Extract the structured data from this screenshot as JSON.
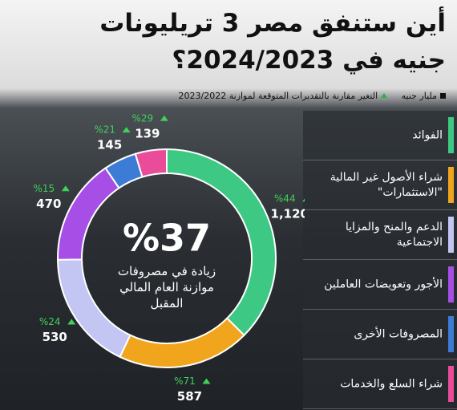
{
  "chart_data": {
    "type": "donut",
    "title": "أين ستنفق مصر 3 تريليونات جنيه في 2024/2023؟",
    "unit_label": "مليار جنيه",
    "change_label": "التغير مقارنة بالتقديرات المتوقعة لموازنة 2023/2022",
    "center_label": "%37",
    "center_text": "زيادة في مصروفات موازنة العام المالي المقبل",
    "categories": [
      "الفوائد",
      "شراء الأصول غير المالية \"الاستثمارات\"",
      "الدعم والمنح والمزايا الاجتماعية",
      "الأجور وتعويضات العاملين",
      "المصروفات الأخرى",
      "شراء السلع والخدمات"
    ],
    "values": [
      1120,
      587,
      530,
      470,
      145,
      139
    ],
    "value_labels": [
      "1,120",
      "587",
      "530",
      "470",
      "145",
      "139"
    ],
    "changes": [
      44,
      71,
      24,
      15,
      21,
      29
    ],
    "change_labels": [
      "%44",
      "%71",
      "%24",
      "%15",
      "%21",
      "%29"
    ],
    "colors": [
      "#3dc983",
      "#f1a51c",
      "#c3c6f2",
      "#a64ee6",
      "#3c7bd6",
      "#ea4c9a"
    ],
    "change_color": "#3fd15a"
  }
}
